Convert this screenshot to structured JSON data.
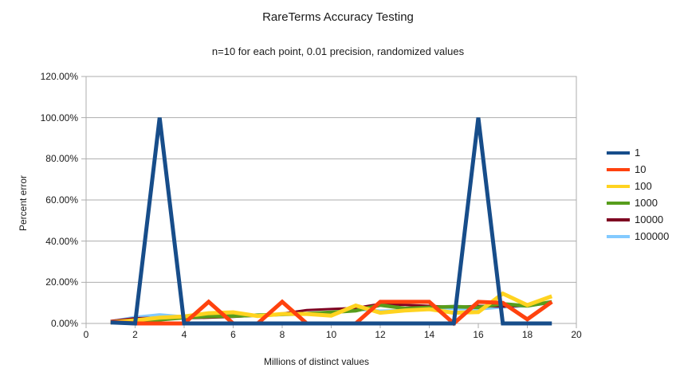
{
  "chart": {
    "title": "RareTerms Accuracy Testing",
    "subtitle": "n=10 for each point, 0.01 precision, randomized values",
    "y_axis_title": "Percent error",
    "x_axis_title": "Millions of distinct values"
  },
  "chart_data": {
    "type": "line",
    "title": "RareTerms Accuracy Testing",
    "subtitle": "n=10 for each point, 0.01 precision, randomized values",
    "xlabel": "Millions of distinct values",
    "ylabel": "Percent error",
    "xlim": [
      0,
      20
    ],
    "ylim": [
      0,
      120
    ],
    "grid": "horizontal",
    "legend_position": "right",
    "axis_color": "#ADADAD",
    "text_color": "#1A1A1A",
    "x_ticks": [
      0,
      2,
      4,
      6,
      8,
      10,
      12,
      14,
      16,
      18,
      20
    ],
    "y_ticks": [
      {
        "value": 0,
        "label": "0.00%"
      },
      {
        "value": 20,
        "label": "20.00%"
      },
      {
        "value": 40,
        "label": "40.00%"
      },
      {
        "value": 60,
        "label": "60.00%"
      },
      {
        "value": 80,
        "label": "80.00%"
      },
      {
        "value": 100,
        "label": "100.00%"
      },
      {
        "value": 120,
        "label": "120.00%"
      }
    ],
    "x": [
      1,
      2,
      3,
      4,
      5,
      6,
      7,
      8,
      9,
      10,
      11,
      12,
      13,
      14,
      15,
      16,
      17,
      18,
      19
    ],
    "series": [
      {
        "name": "1",
        "color": "#174D8A",
        "width": 5,
        "values": [
          0.5,
          0,
          100,
          0,
          0,
          0,
          0,
          0,
          0,
          0,
          0,
          0,
          0,
          0,
          0,
          100,
          0,
          0,
          0
        ]
      },
      {
        "name": "10",
        "color": "#FF420E",
        "width": 5,
        "values": [
          0.8,
          0,
          0,
          0,
          10.5,
          0,
          0,
          10.5,
          0,
          0,
          0,
          10.5,
          10.5,
          10.5,
          0,
          10.5,
          10,
          2,
          10.5
        ]
      },
      {
        "name": "100",
        "color": "#FFD320",
        "width": 5,
        "values": [
          0.6,
          1.5,
          2.8,
          3.4,
          5,
          5.4,
          3.6,
          4.6,
          4.6,
          3.8,
          8.7,
          5.2,
          6.3,
          6.9,
          5.2,
          5.5,
          14.5,
          8.9,
          13.2
        ]
      },
      {
        "name": "1000",
        "color": "#579D1C",
        "width": 4.5,
        "values": [
          0.4,
          1,
          1.8,
          2.8,
          3.4,
          3.6,
          4,
          4.4,
          4.8,
          5.4,
          6.2,
          8.9,
          7.3,
          7.8,
          8.2,
          7.8,
          9.5,
          8.5,
          10.5
        ]
      },
      {
        "name": "10000",
        "color": "#7E0021",
        "width": 3,
        "values": [
          1.2,
          2.5,
          2.8,
          2.5,
          2.8,
          3.2,
          3.8,
          4.8,
          6.5,
          7,
          7.5,
          9.5,
          9,
          8.5,
          8,
          8.5,
          8.2,
          8.6,
          10
        ]
      },
      {
        "name": "100000",
        "color": "#83CAFF",
        "width": 4,
        "values": [
          0.8,
          3,
          4.2,
          3.2,
          3.4,
          3.6,
          3.8,
          4.2,
          4.6,
          5,
          7,
          6,
          6.3,
          8.3,
          7.2,
          7,
          8,
          8.6,
          10.2
        ]
      }
    ]
  }
}
